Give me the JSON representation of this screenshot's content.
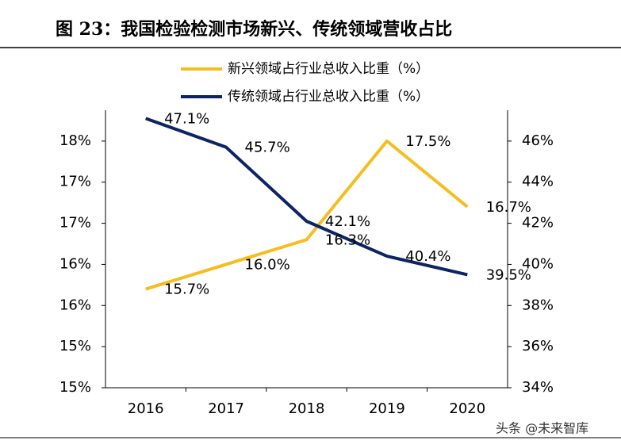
{
  "chart_data": {
    "type": "line",
    "title": "图 23：我国检验检测市场新兴、传统领域营收占比",
    "watermark": "头条 @未来智库",
    "categories": [
      "2016",
      "2017",
      "2018",
      "2019",
      "2020"
    ],
    "series": [
      {
        "name": "新兴领域占行业总收入比重（%）",
        "color": "#f5bd1f",
        "values": [
          15.7,
          16.0,
          16.3,
          17.5,
          16.7
        ],
        "value_labels": [
          "15.7%",
          "16.0%",
          "16.3%",
          "17.5%",
          "16.7%"
        ]
      },
      {
        "name": "传统领域占行业总收入比重（%）",
        "color": "#0c2461",
        "axis": "y2",
        "values": [
          47.1,
          45.7,
          42.1,
          40.4,
          39.5
        ],
        "value_labels": [
          "47.1%",
          "45.7%",
          "42.1%",
          "40.4%",
          "39.5%"
        ]
      }
    ],
    "ylim": [
      14.5,
      17.875
    ],
    "yticks": [
      {
        "value": 14.5,
        "label": "15%"
      },
      {
        "value": 15,
        "label": "15%"
      },
      {
        "value": 15.5,
        "label": "16%"
      },
      {
        "value": 16,
        "label": "16%"
      },
      {
        "value": 16.5,
        "label": "17%"
      },
      {
        "value": 17,
        "label": "17%"
      },
      {
        "value": 17.5,
        "label": "18%"
      }
    ],
    "y2lim": [
      34,
      47.5
    ],
    "y2ticks": [
      {
        "value": 34,
        "label": "34%"
      },
      {
        "value": 36,
        "label": "36%"
      },
      {
        "value": 38,
        "label": "38%"
      },
      {
        "value": 40,
        "label": "40%"
      },
      {
        "value": 42,
        "label": "42%"
      },
      {
        "value": 44,
        "label": "44%"
      },
      {
        "value": 46,
        "label": "46%"
      }
    ],
    "grid": false
  }
}
